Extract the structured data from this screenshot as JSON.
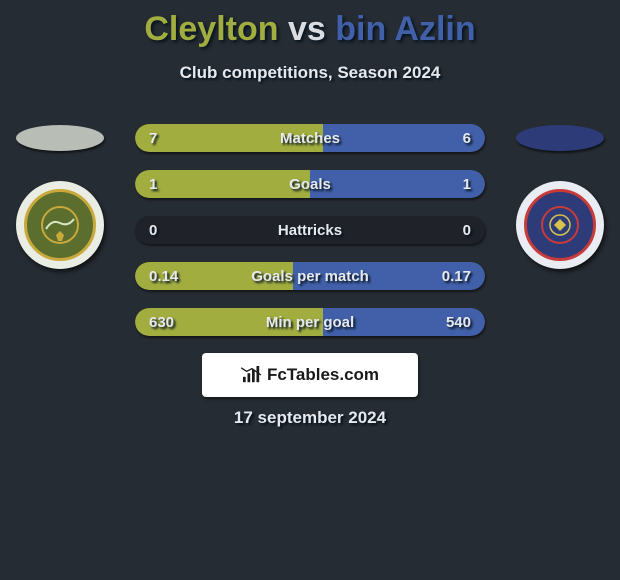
{
  "background_color": "#262c33",
  "title": {
    "player1": "Cleylton",
    "vs": "vs",
    "player2": "bin Azlin",
    "player1_color": "#a1ad3f",
    "vs_color": "#d9dde2",
    "player2_color": "#4160a9",
    "fontsize": 34,
    "shadow_color": "#06121e"
  },
  "subtitle": {
    "text": "Club competitions, Season 2024",
    "color": "#e6e9ed",
    "fontsize": 17
  },
  "player1": {
    "ellipse_color": "#b8beb6",
    "club_bg": "#e9ede3",
    "club_inner_bg": "#5c6e2e",
    "club_inner_border": "#c9a93b",
    "club_text_color": "#e9ede3"
  },
  "player2": {
    "ellipse_color": "#2d3b79",
    "club_bg": "#e9edf3",
    "club_inner_bg": "#2d3b79",
    "club_inner_border": "#c93b3b",
    "club_text_color": "#d7c24a"
  },
  "bars": {
    "track_color": "#1f2329",
    "left_color": "#a1ad3f",
    "right_color": "#4160a9",
    "height": 28,
    "radius": 14,
    "fontsize": 15,
    "text_color": "#e6e9ed",
    "rows": [
      {
        "label": "Matches",
        "left": "7",
        "right": "6",
        "left_pct": 53.8,
        "right_pct": 46.2
      },
      {
        "label": "Goals",
        "left": "1",
        "right": "1",
        "left_pct": 50.0,
        "right_pct": 50.0
      },
      {
        "label": "Hattricks",
        "left": "0",
        "right": "0",
        "left_pct": 0.0,
        "right_pct": 0.0
      },
      {
        "label": "Goals per match",
        "left": "0.14",
        "right": "0.17",
        "left_pct": 45.2,
        "right_pct": 54.8
      },
      {
        "label": "Min per goal",
        "left": "630",
        "right": "540",
        "left_pct": 53.8,
        "right_pct": 46.2
      }
    ]
  },
  "brand": {
    "text": "FcTables.com",
    "bg": "#ffffff",
    "text_color": "#1a1a1a",
    "icon_color": "#1a1a1a"
  },
  "date": {
    "text": "17 september 2024",
    "color": "#e6e9ed",
    "fontsize": 17
  }
}
